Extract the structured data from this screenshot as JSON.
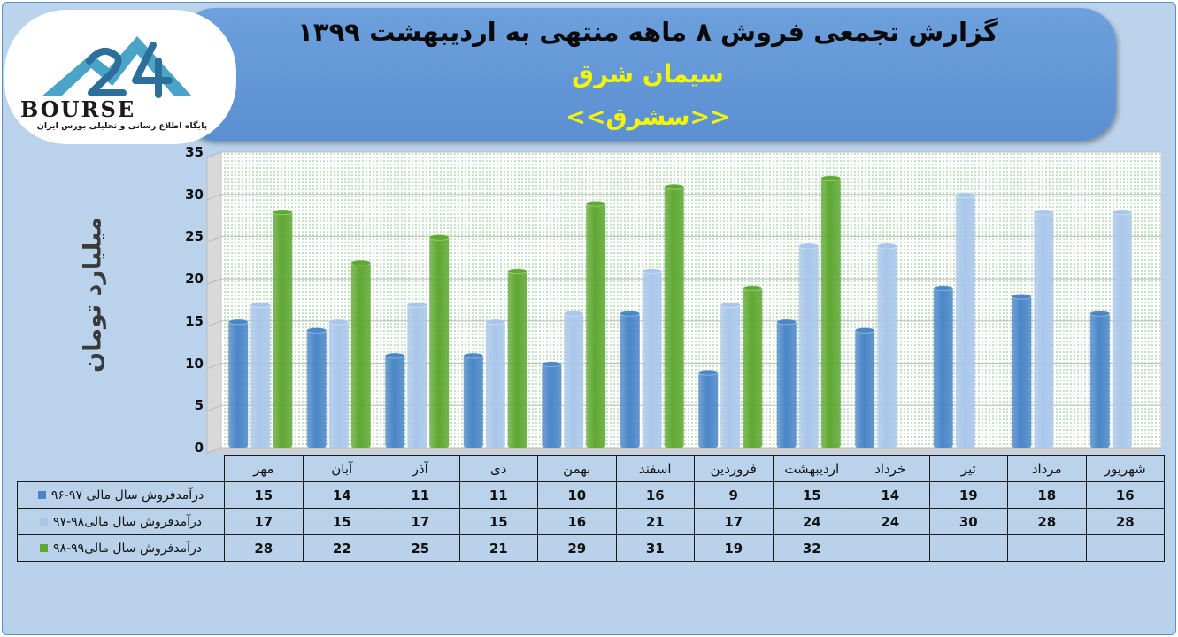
{
  "header": {
    "title": "گزارش تجمعی فروش ۸ ماهه منتهی به اردیبهشت ۱۳۹۹",
    "subtitle": "سیمان شرق",
    "symbol": "<<سشرق>>"
  },
  "logo": {
    "word": "BOURSE",
    "tagline": "پایگاه اطلاع رسانی و تحلیلی بورس ایران"
  },
  "chart_data": {
    "type": "bar",
    "ylabel": "میلیارد تومان",
    "ylim": [
      0,
      35
    ],
    "yticks": [
      0,
      5,
      10,
      15,
      20,
      25,
      30,
      35
    ],
    "grid": true,
    "categories": [
      "مهر",
      "آبان",
      "آذر",
      "دی",
      "بهمن",
      "اسفند",
      "فروردین",
      "اردیبهشت",
      "خرداد",
      "تیر",
      "مرداد",
      "شهریور"
    ],
    "series": [
      {
        "name": "درآمدفروش سال مالی ۹۷-۹۶",
        "color": "#4a86c8",
        "values": [
          15,
          14,
          11,
          11,
          10,
          16,
          9,
          15,
          14,
          19,
          18,
          16
        ]
      },
      {
        "name": "درآمدفروش سال مالی۹۸-۹۷",
        "color": "#a9c6ea",
        "values": [
          17,
          15,
          17,
          15,
          16,
          21,
          17,
          24,
          24,
          30,
          28,
          28
        ]
      },
      {
        "name": "درآمدفروش سال مالی۹۹-۹۸",
        "color": "#5fa832",
        "values": [
          28,
          22,
          25,
          21,
          29,
          31,
          19,
          32,
          null,
          null,
          null,
          null
        ]
      }
    ]
  }
}
